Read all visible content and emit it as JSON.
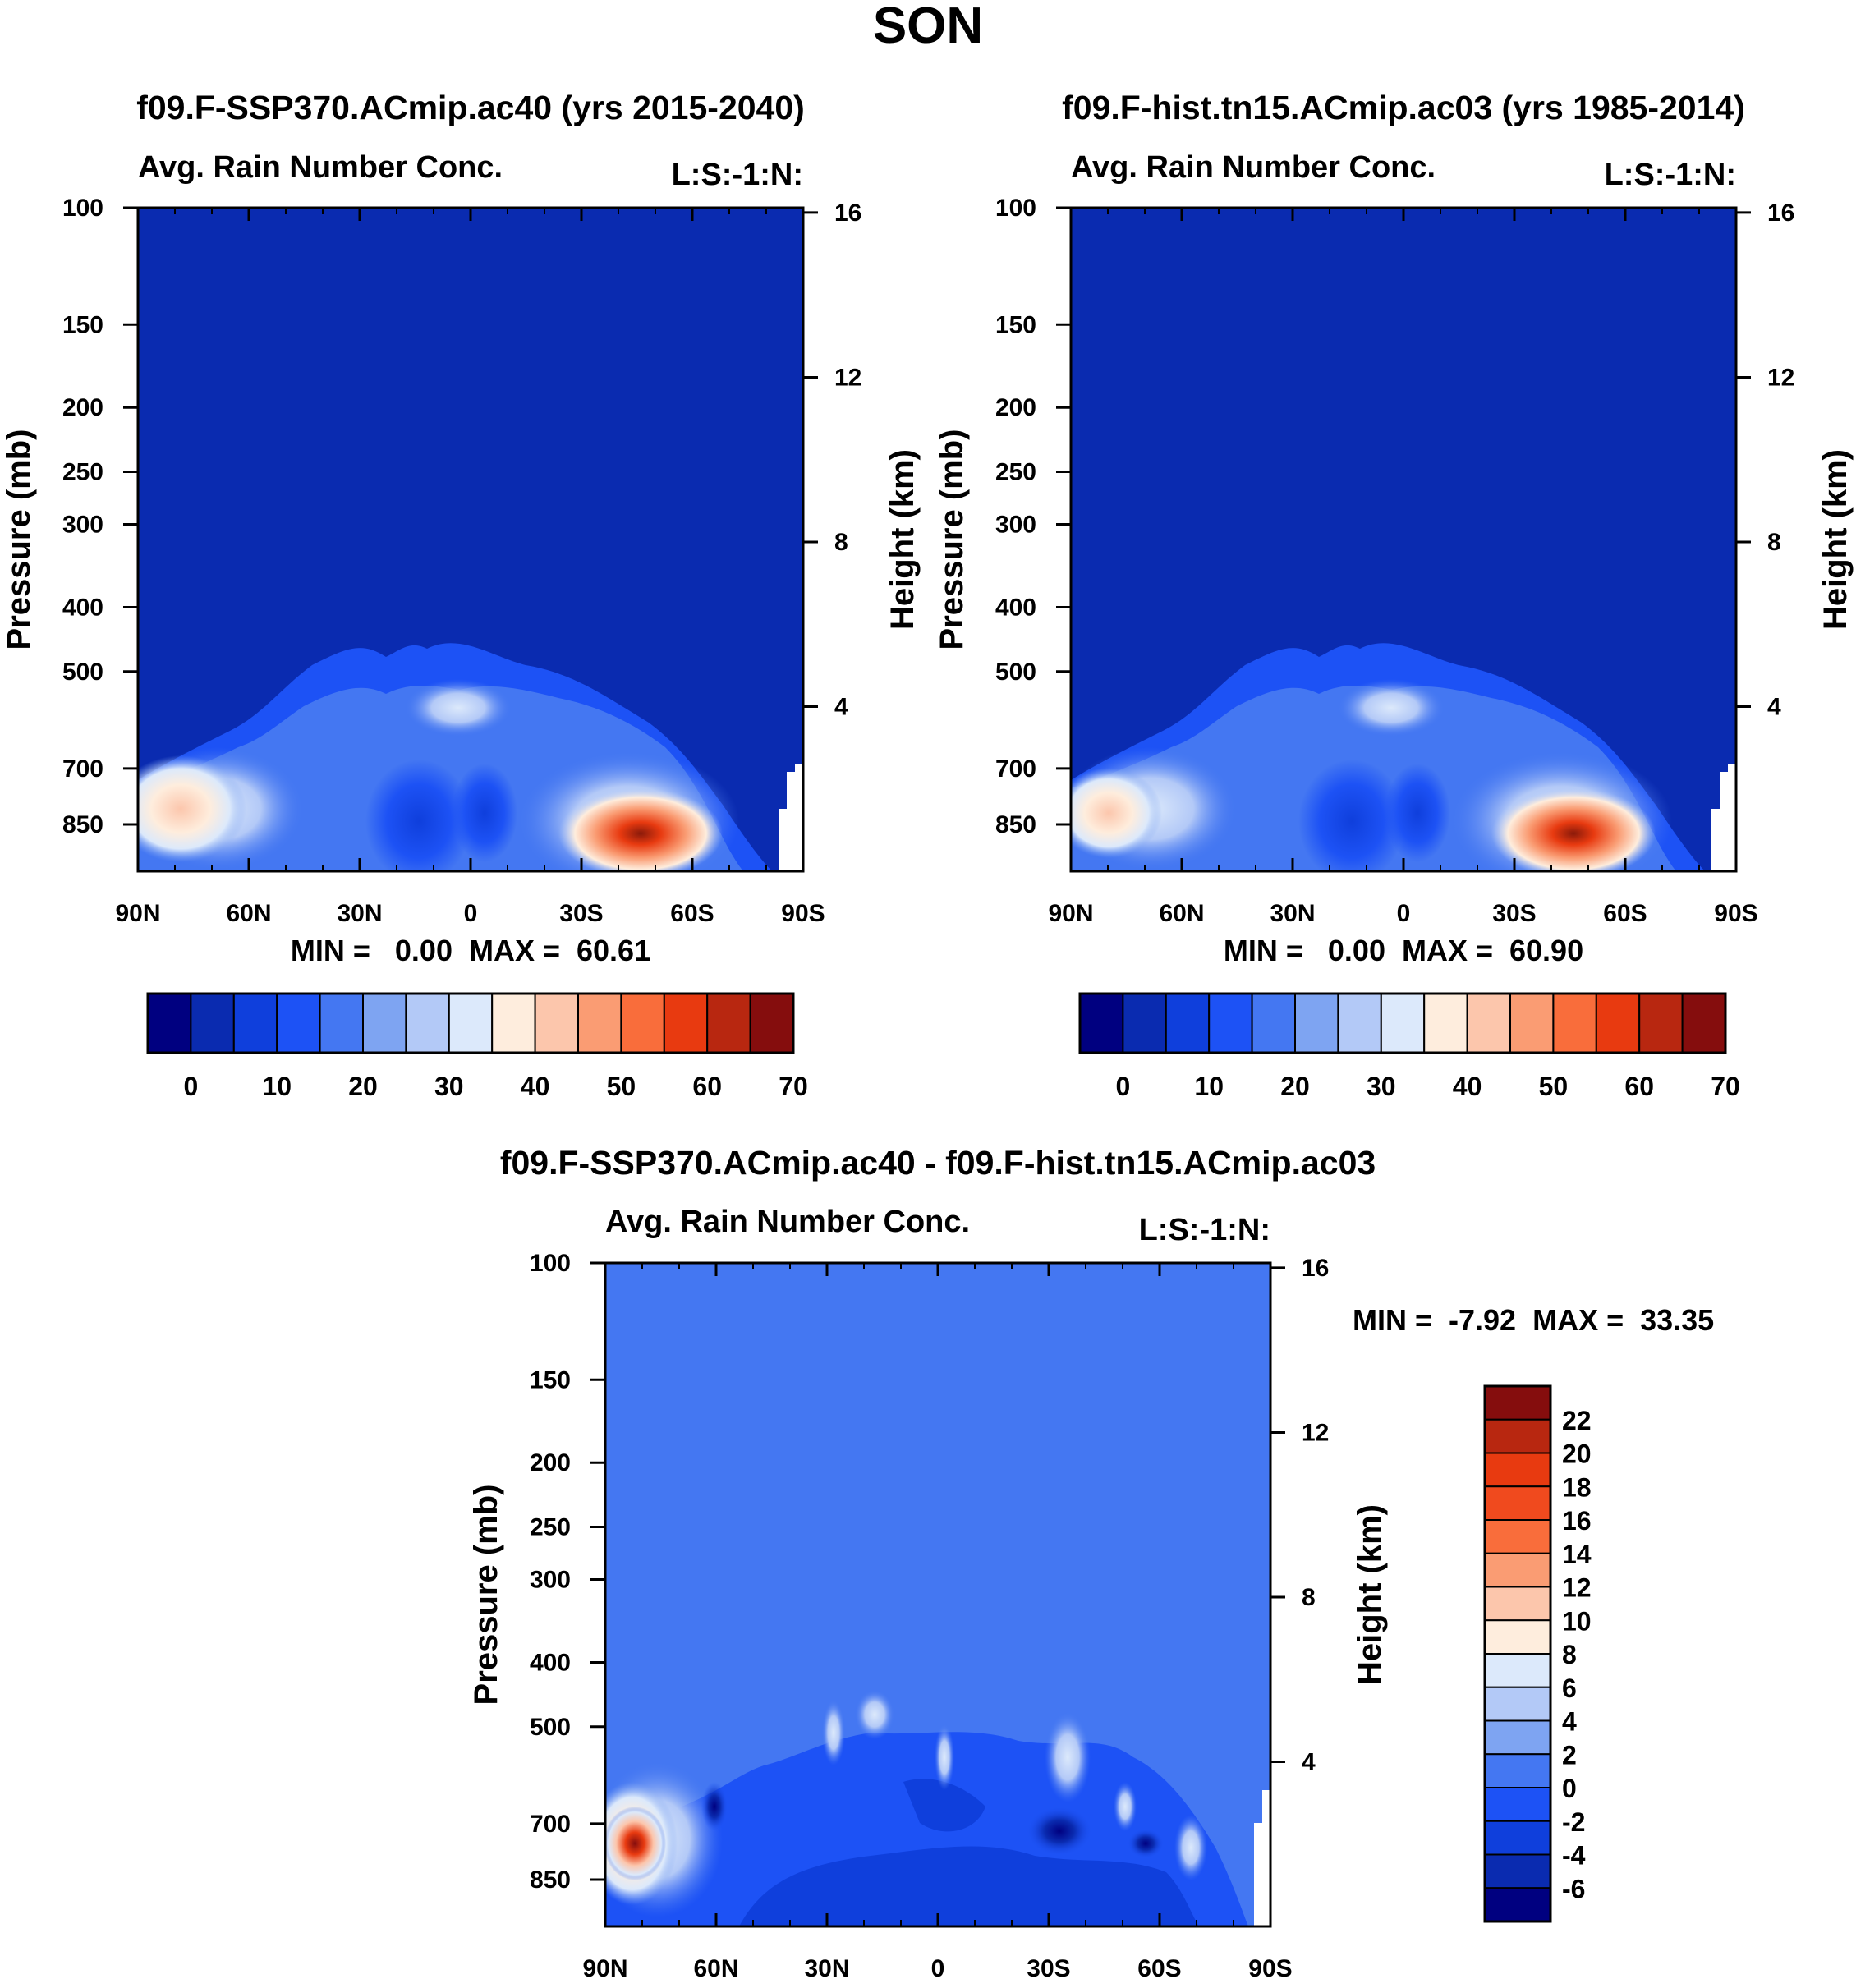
{
  "page_title": "SON",
  "colors": {
    "abs_levels": [
      "#000080",
      "#0a2bb0",
      "#0f3fdc",
      "#1d52f5",
      "#4477f2",
      "#7ea4f2",
      "#b3c9f7",
      "#dce9fb",
      "#feeddd",
      "#fcc6ac",
      "#fa9c73",
      "#f96d3b",
      "#e83a10",
      "#b82710",
      "#850d0d"
    ],
    "diff_levels": [
      "#000080",
      "#0a2bb0",
      "#0f3fdc",
      "#1d52f5",
      "#4477f2",
      "#7ea4f2",
      "#b3c9f7",
      "#dce9fb",
      "#feeddd",
      "#fcc6ac",
      "#fa9c73",
      "#f96d3b",
      "#f04a1e",
      "#e83a10",
      "#b82710",
      "#850d0d"
    ]
  },
  "chart_data": [
    {
      "type": "heatmap",
      "title": "f09.F-SSP370.ACmip.ac40 (yrs 2015-2040)",
      "subtitle_left": "Avg. Rain Number Conc.",
      "subtitle_right": "L:S:-1:N:",
      "ylabel": "Pressure (mb)",
      "y2label": "Height (km)",
      "x_ticks": [
        "90N",
        "60N",
        "30N",
        "0",
        "30S",
        "60S",
        "90S"
      ],
      "x_values": [
        90,
        60,
        30,
        0,
        -30,
        -60,
        -90
      ],
      "y_ticks": [
        "100",
        "150",
        "200",
        "250",
        "300",
        "400",
        "500",
        "700",
        "850"
      ],
      "y_values": [
        100,
        150,
        200,
        250,
        300,
        400,
        500,
        700,
        850
      ],
      "ylim": [
        100,
        1000
      ],
      "y2_ticks": [
        "16",
        "12",
        "8",
        "4"
      ],
      "y2_values": [
        16,
        12,
        8,
        4
      ],
      "stats": "MIN =   0.00  MAX =  60.61",
      "colorbar_labels": [
        "0",
        "10",
        "20",
        "30",
        "40",
        "50",
        "60",
        "70"
      ],
      "colorbar_values": [
        0,
        10,
        20,
        30,
        40,
        50,
        60,
        70
      ],
      "colorbar_bins": 15,
      "features": [
        {
          "lat": -47,
          "p": 860,
          "value": 60.61
        },
        {
          "lat": 82,
          "p": 820,
          "value": 42
        },
        {
          "lat": 0,
          "p": 520,
          "value": 30
        }
      ]
    },
    {
      "type": "heatmap",
      "title": "f09.F-hist.tn15.ACmip.ac03 (yrs 1985-2014)",
      "subtitle_left": "Avg. Rain Number Conc.",
      "subtitle_right": "L:S:-1:N:",
      "ylabel": "Pressure (mb)",
      "y2label": "Height (km)",
      "x_ticks": [
        "90N",
        "60N",
        "30N",
        "0",
        "30S",
        "60S",
        "90S"
      ],
      "x_values": [
        90,
        60,
        30,
        0,
        -30,
        -60,
        -90
      ],
      "y_ticks": [
        "100",
        "150",
        "200",
        "250",
        "300",
        "400",
        "500",
        "700",
        "850"
      ],
      "y_values": [
        100,
        150,
        200,
        250,
        300,
        400,
        500,
        700,
        850
      ],
      "ylim": [
        100,
        1000
      ],
      "y2_ticks": [
        "16",
        "12",
        "8",
        "4"
      ],
      "y2_values": [
        16,
        12,
        8,
        4
      ],
      "stats": "MIN =   0.00  MAX =  60.90",
      "colorbar_labels": [
        "0",
        "10",
        "20",
        "30",
        "40",
        "50",
        "60",
        "70"
      ],
      "colorbar_values": [
        0,
        10,
        20,
        30,
        40,
        50,
        60,
        70
      ],
      "colorbar_bins": 15,
      "features": [
        {
          "lat": -47,
          "p": 860,
          "value": 60.9
        },
        {
          "lat": 82,
          "p": 820,
          "value": 36
        },
        {
          "lat": 0,
          "p": 520,
          "value": 30
        }
      ]
    },
    {
      "type": "heatmap",
      "title": "f09.F-SSP370.ACmip.ac40 - f09.F-hist.tn15.ACmip.ac03",
      "subtitle_left": "Avg. Rain Number Conc.",
      "subtitle_right": "L:S:-1:N:",
      "ylabel": "Pressure (mb)",
      "y2label": "Height (km)",
      "x_ticks": [
        "90N",
        "60N",
        "30N",
        "0",
        "30S",
        "60S",
        "90S"
      ],
      "x_values": [
        90,
        60,
        30,
        0,
        -30,
        -60,
        -90
      ],
      "y_ticks": [
        "100",
        "150",
        "200",
        "250",
        "300",
        "400",
        "500",
        "700",
        "850"
      ],
      "y_values": [
        100,
        150,
        200,
        250,
        300,
        400,
        500,
        700,
        850
      ],
      "ylim": [
        100,
        1000
      ],
      "y2_ticks": [
        "16",
        "12",
        "8",
        "4"
      ],
      "y2_values": [
        16,
        12,
        8,
        4
      ],
      "stats": "MIN =  -7.92  MAX =  33.35",
      "colorbar_labels": [
        "22",
        "20",
        "18",
        "16",
        "14",
        "12",
        "10",
        "8",
        "6",
        "4",
        "2",
        "0",
        "-2",
        "-4",
        "-6"
      ],
      "colorbar_values": [
        22,
        20,
        18,
        16,
        14,
        12,
        10,
        8,
        6,
        4,
        2,
        0,
        -2,
        -4,
        -6
      ],
      "colorbar_bins": 16,
      "features": [
        {
          "lat": 80,
          "p": 710,
          "value": 33.35
        },
        {
          "lat": -57,
          "p": 740,
          "value": -7.92
        }
      ]
    }
  ]
}
